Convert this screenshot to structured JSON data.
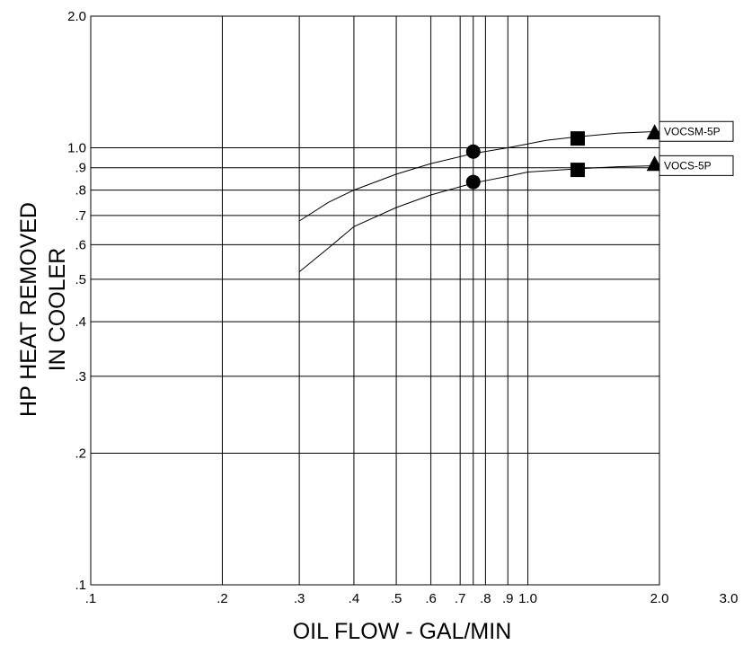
{
  "chart_data": {
    "type": "line",
    "xlabel": "OIL FLOW - GAL/MIN",
    "ylabel_lines": [
      "HP HEAT REMOVED",
      "IN COOLER"
    ],
    "x_scale": "log",
    "y_scale": "log",
    "xlim": [
      0.1,
      3.0
    ],
    "ylim": [
      0.1,
      2.0
    ],
    "x_ticks": [
      {
        "value": 0.1,
        "label": ".1"
      },
      {
        "value": 0.2,
        "label": ".2"
      },
      {
        "value": 0.3,
        "label": ".3"
      },
      {
        "value": 0.4,
        "label": ".4"
      },
      {
        "value": 0.5,
        "label": ".5"
      },
      {
        "value": 0.6,
        "label": ".6"
      },
      {
        "value": 0.7,
        "label": ".7"
      },
      {
        "value": 0.8,
        "label": ".8"
      },
      {
        "value": 0.9,
        "label": ".9"
      },
      {
        "value": 1.0,
        "label": "1.0"
      },
      {
        "value": 2.0,
        "label": "2.0"
      },
      {
        "value": 3.0,
        "label": "3.0"
      }
    ],
    "x_extra_gridlines": [
      0.75
    ],
    "y_ticks": [
      {
        "value": 0.1,
        "label": ".1"
      },
      {
        "value": 0.2,
        "label": ".2"
      },
      {
        "value": 0.3,
        "label": ".3"
      },
      {
        "value": 0.4,
        "label": ".4"
      },
      {
        "value": 0.5,
        "label": ".5"
      },
      {
        "value": 0.6,
        "label": ".6"
      },
      {
        "value": 0.7,
        "label": ".7"
      },
      {
        "value": 0.8,
        "label": ".8"
      },
      {
        "value": 0.9,
        "label": ".9"
      },
      {
        "value": 1.0,
        "label": "1.0"
      },
      {
        "value": 2.0,
        "label": "2.0"
      }
    ],
    "grid": true,
    "series": [
      {
        "name": "VOCSM-5P",
        "x": [
          0.3,
          0.35,
          0.4,
          0.5,
          0.6,
          0.75,
          0.9,
          1.1,
          1.3,
          1.6,
          2.0
        ],
        "y": [
          0.68,
          0.75,
          0.8,
          0.87,
          0.92,
          0.97,
          1.0,
          1.04,
          1.06,
          1.08,
          1.09
        ],
        "markers": [
          {
            "x": 0.75,
            "y": 0.98,
            "shape": "circle"
          },
          {
            "x": 1.3,
            "y": 1.05,
            "shape": "square"
          },
          {
            "x": 1.95,
            "y": 1.08,
            "shape": "triangle"
          }
        ]
      },
      {
        "name": "VOCS-5P",
        "x": [
          0.3,
          0.35,
          0.4,
          0.5,
          0.6,
          0.75,
          0.9,
          1.0,
          1.3,
          1.6,
          2.0
        ],
        "y": [
          0.52,
          0.59,
          0.66,
          0.73,
          0.78,
          0.83,
          0.86,
          0.88,
          0.895,
          0.905,
          0.91
        ],
        "markers": [
          {
            "x": 0.75,
            "y": 0.835,
            "shape": "circle"
          },
          {
            "x": 1.3,
            "y": 0.89,
            "shape": "square"
          },
          {
            "x": 1.95,
            "y": 0.915,
            "shape": "triangle"
          }
        ]
      }
    ],
    "colors": {
      "line": "#000000",
      "grid": "#000000",
      "background": "#ffffff"
    }
  }
}
